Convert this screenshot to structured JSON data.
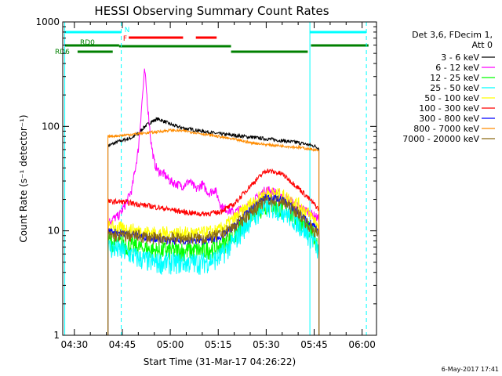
{
  "chart_data": {
    "type": "line",
    "title": "HESSI Observing Summary Count Rates",
    "xlabel": "Start Time (31-Mar-17 04:26:22)",
    "ylabel": "Count Rate (s⁻¹ detector⁻¹)",
    "x_unit": "time (HH:MM UT)",
    "xlim": [
      "04:26:22",
      "06:04:30"
    ],
    "ylim": [
      1,
      1000
    ],
    "yscale": "log",
    "grid": false,
    "x_ticks": [
      "04:30",
      "04:45",
      "05:00",
      "05:15",
      "05:30",
      "05:45",
      "06:00"
    ],
    "y_ticks": [
      "1",
      "10",
      "100",
      "1000"
    ],
    "data_gaps": [
      [
        "04:26:22",
        "04:40:30"
      ],
      [
        "05:46:30",
        "06:04:30"
      ]
    ],
    "legend_position": "right",
    "legend_header": [
      "Det 3,6, FDecim 1,",
      "Att 0"
    ],
    "series": [
      {
        "name": "3 - 6 keV",
        "color": "#000000",
        "x": [
          "04:40:30",
          "04:42",
          "04:44",
          "04:46",
          "04:48",
          "04:50",
          "04:52",
          "04:54",
          "04:56",
          "04:58",
          "05:00",
          "05:02",
          "05:05",
          "05:10",
          "05:15",
          "05:20",
          "05:25",
          "05:30",
          "05:35",
          "05:40",
          "05:45",
          "05:46:30"
        ],
        "y": [
          65,
          68,
          72,
          75,
          78,
          85,
          100,
          110,
          118,
          112,
          105,
          100,
          95,
          90,
          85,
          82,
          79,
          76,
          73,
          70,
          65,
          62
        ]
      },
      {
        "name": "6 - 12 keV",
        "color": "#ff00ff",
        "x": [
          "04:40:30",
          "04:42",
          "04:44",
          "04:46",
          "04:48",
          "04:50",
          "04:51",
          "04:52",
          "04:53",
          "04:54",
          "04:55",
          "04:56",
          "04:58",
          "05:00",
          "05:02",
          "05:04",
          "05:06",
          "05:08",
          "05:10",
          "05:12",
          "05:14",
          "05:16",
          "05:20",
          "05:25",
          "05:28",
          "05:30",
          "05:32",
          "05:35",
          "05:38",
          "05:40",
          "05:42",
          "05:45",
          "05:46:30"
        ],
        "y": [
          12,
          13,
          14,
          18,
          25,
          60,
          150,
          350,
          150,
          70,
          45,
          38,
          35,
          30,
          28,
          27,
          30,
          25,
          28,
          23,
          25,
          17,
          15,
          18,
          22,
          25,
          24,
          22,
          19,
          17,
          16,
          14,
          13
        ]
      },
      {
        "name": "12 - 25 keV",
        "color": "#00ff00",
        "x": [
          "04:40:30",
          "04:45",
          "04:50",
          "04:55",
          "05:00",
          "05:05",
          "05:10",
          "05:15",
          "05:20",
          "05:25",
          "05:30",
          "05:35",
          "05:40",
          "05:45",
          "05:46:30"
        ],
        "y": [
          8,
          7.5,
          7,
          6.5,
          6.5,
          6.5,
          6.5,
          7,
          9,
          14,
          18,
          17,
          13,
          9,
          7
        ]
      },
      {
        "name": "25 - 50 keV",
        "color": "#00ffff",
        "x": [
          "04:40:30",
          "04:45",
          "04:50",
          "04:55",
          "05:00",
          "05:05",
          "05:10",
          "05:15",
          "05:20",
          "05:25",
          "05:30",
          "05:35",
          "05:40",
          "05:45",
          "05:46:30"
        ],
        "y": [
          7,
          6.5,
          5.5,
          5,
          5,
          5,
          5,
          5.5,
          8,
          13,
          17,
          16,
          12,
          8,
          6
        ]
      },
      {
        "name": "50 - 100 keV",
        "color": "#ffff00",
        "x": [
          "04:40:30",
          "04:45",
          "04:50",
          "04:55",
          "05:00",
          "05:05",
          "05:10",
          "05:15",
          "05:20",
          "05:25",
          "05:30",
          "05:35",
          "05:40",
          "05:45",
          "05:46:30"
        ],
        "y": [
          11,
          10.5,
          10,
          9.5,
          9.5,
          9.5,
          9.5,
          10,
          13,
          18,
          23,
          22,
          18,
          13,
          11
        ]
      },
      {
        "name": "100 - 300 keV",
        "color": "#ff0000",
        "x": [
          "04:40:30",
          "04:45",
          "04:50",
          "04:55",
          "05:00",
          "05:05",
          "05:10",
          "05:15",
          "05:20",
          "05:25",
          "05:30",
          "05:35",
          "05:40",
          "05:45",
          "05:46:30"
        ],
        "y": [
          19,
          19,
          18,
          17,
          16,
          15,
          14.5,
          15,
          18,
          27,
          38,
          35,
          26,
          18,
          16
        ]
      },
      {
        "name": "300 - 800 keV",
        "color": "#0000ff",
        "x": [
          "04:40:30",
          "04:45",
          "04:50",
          "04:55",
          "05:00",
          "05:05",
          "05:10",
          "05:15",
          "05:20",
          "05:25",
          "05:30",
          "05:35",
          "05:40",
          "05:45",
          "05:46:30"
        ],
        "y": [
          10,
          9.5,
          9,
          8.5,
          8,
          8,
          8,
          8.5,
          11,
          16,
          21,
          20,
          15,
          11,
          9.5
        ]
      },
      {
        "name": "800 - 7000 keV",
        "color": "#ff8c00",
        "x": [
          "04:40:30",
          "04:45",
          "04:50",
          "04:55",
          "05:00",
          "05:05",
          "05:10",
          "05:15",
          "05:20",
          "05:25",
          "05:30",
          "05:35",
          "05:40",
          "05:45",
          "05:46:30"
        ],
        "y": [
          80,
          82,
          85,
          88,
          92,
          90,
          85,
          80,
          75,
          70,
          67,
          65,
          63,
          60,
          58
        ]
      },
      {
        "name": "7000 - 20000 keV",
        "color": "#8b6914",
        "x": [
          "04:40:30",
          "04:45",
          "04:50",
          "04:55",
          "05:00",
          "05:05",
          "05:10",
          "05:15",
          "05:20",
          "05:25",
          "05:30",
          "05:35",
          "05:40",
          "05:45",
          "05:46:30"
        ],
        "y": [
          9,
          9,
          9,
          8.5,
          8.5,
          8.5,
          8.5,
          9,
          11,
          15,
          20,
          19,
          15,
          10,
          9
        ]
      }
    ],
    "vertical_markers": [
      {
        "color": "#00ffff",
        "style": "solid",
        "x": "04:27:00"
      },
      {
        "color": "#00ffff",
        "style": "dashed",
        "x": "04:44:40"
      },
      {
        "color": "#00ffff",
        "style": "solid",
        "x": "05:43:40"
      },
      {
        "color": "#00ffff",
        "style": "dashed",
        "x": "06:01:20"
      }
    ],
    "flag_bars": [
      {
        "label": "N",
        "label_color": "#00ffff",
        "color": "#00ffff",
        "segments": [
          [
            "04:27:00",
            "04:44:40"
          ],
          [
            "05:43:40",
            "06:01:20"
          ]
        ]
      },
      {
        "label": "F",
        "label_color": "#ff0000",
        "color": "#ff0000",
        "segments": [
          [
            "04:47:00",
            "05:04:00"
          ],
          [
            "05:08:00",
            "05:14:30"
          ]
        ]
      },
      {
        "label": "RD0",
        "label_color": "#008000",
        "color": "#008000",
        "segments": [
          [
            "04:27:00",
            "04:44:00"
          ],
          [
            "04:44:00",
            "05:19:00"
          ],
          [
            "05:44:00",
            "06:02:00"
          ]
        ]
      },
      {
        "label": "RD6",
        "label_color": "#008000",
        "color": "#008000",
        "segments": [
          [
            "04:31:00",
            "04:42:00"
          ],
          [
            "05:19:00",
            "05:43:00"
          ]
        ]
      }
    ],
    "timestamp": "6-May-2017 17:41"
  }
}
